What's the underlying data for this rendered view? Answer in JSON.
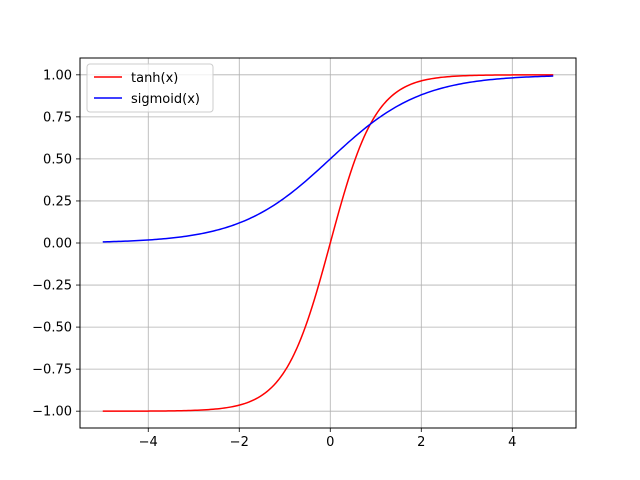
{
  "chart_data": {
    "type": "line",
    "title": "",
    "xlabel": "",
    "ylabel": "",
    "xlim": [
      -5.5,
      5.4
    ],
    "ylim": [
      -1.1,
      1.1
    ],
    "grid": true,
    "legend_placement": "top-left",
    "x_ticks": [
      -4,
      -2,
      0,
      2,
      4
    ],
    "x_tick_labels": [
      "−4",
      "−2",
      "0",
      "2",
      "4"
    ],
    "y_ticks": [
      -1.0,
      -0.75,
      -0.5,
      -0.25,
      0.0,
      0.25,
      0.5,
      0.75,
      1.0
    ],
    "y_tick_labels": [
      "−1.00",
      "−0.75",
      "−0.50",
      "−0.25",
      "0.00",
      "0.25",
      "0.50",
      "0.75",
      "1.00"
    ],
    "x_range": [
      -5.0,
      4.9
    ],
    "series": [
      {
        "name": "tanh(x)",
        "color": "#ff0000",
        "x": [
          -5.0,
          -4.5,
          -4.0,
          -3.5,
          -3.0,
          -2.5,
          -2.0,
          -1.75,
          -1.5,
          -1.25,
          -1.0,
          -0.75,
          -0.5,
          -0.25,
          0.0,
          0.25,
          0.5,
          0.75,
          1.0,
          1.25,
          1.5,
          1.75,
          2.0,
          2.5,
          3.0,
          3.5,
          4.0,
          4.5,
          4.9
        ],
        "y": [
          -0.9999,
          -0.9998,
          -0.9993,
          -0.9982,
          -0.9951,
          -0.9866,
          -0.964,
          -0.9414,
          -0.9051,
          -0.8483,
          -0.7616,
          -0.6351,
          -0.4621,
          -0.2449,
          0.0,
          0.2449,
          0.4621,
          0.6351,
          0.7616,
          0.8483,
          0.9051,
          0.9414,
          0.964,
          0.9866,
          0.9951,
          0.9982,
          0.9993,
          0.9998,
          0.9999
        ]
      },
      {
        "name": "sigmoid(x)",
        "color": "#0000ff",
        "x": [
          -5.0,
          -4.5,
          -4.0,
          -3.5,
          -3.0,
          -2.5,
          -2.0,
          -1.75,
          -1.5,
          -1.25,
          -1.0,
          -0.75,
          -0.5,
          -0.25,
          0.0,
          0.25,
          0.5,
          0.75,
          1.0,
          1.25,
          1.5,
          1.75,
          2.0,
          2.5,
          3.0,
          3.5,
          4.0,
          4.5,
          4.9
        ],
        "y": [
          0.0067,
          0.011,
          0.018,
          0.0293,
          0.0474,
          0.0759,
          0.1192,
          0.148,
          0.1824,
          0.2227,
          0.2689,
          0.3208,
          0.3775,
          0.4378,
          0.5,
          0.5622,
          0.6225,
          0.6792,
          0.7311,
          0.7773,
          0.8176,
          0.852,
          0.8808,
          0.9241,
          0.9526,
          0.9707,
          0.982,
          0.989,
          0.9926
        ]
      }
    ]
  }
}
